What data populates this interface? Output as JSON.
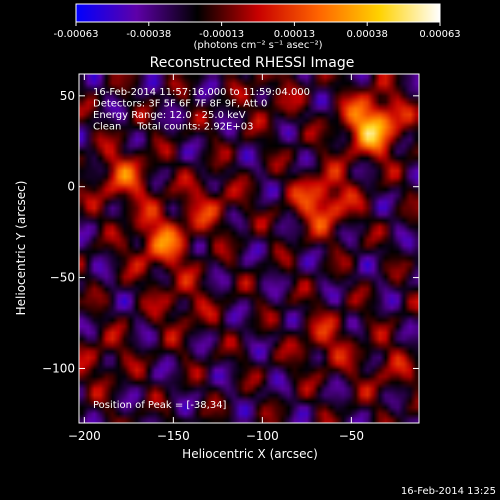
{
  "colorbar": {
    "ticks": [
      "-0.00063",
      "-0.00038",
      "-0.00013",
      "0.00013",
      "0.00038",
      "0.00063"
    ],
    "unit_label": "(photons cm⁻² s⁻¹ asec⁻²)",
    "colormap": [
      "#0000ff",
      "#5e00a8",
      "#000000",
      "#c80000",
      "#ff6400",
      "#ffd200",
      "#ffffff"
    ]
  },
  "chart_data": {
    "type": "heatmap",
    "title": "Reconstructed RHESSI Image",
    "xlabel": "Heliocentric X (arcsec)",
    "ylabel": "Heliocentric Y (arcsec)",
    "xlim": [
      -203,
      -12
    ],
    "ylim": [
      -130,
      62
    ],
    "xticks": [
      -200,
      -150,
      -100,
      -50
    ],
    "yticks": [
      -100,
      -50,
      0,
      50
    ],
    "info_lines": [
      "16-Feb-2014 11:57:16.000 to 11:59:04.000",
      "Detectors: 3F 5F 6F 7F 8F 9F, Att 0",
      "Energy Range: 12.0 - 25.0 keV",
      "Clean     Total counts: 2.92E+03"
    ],
    "peak_text": "Position of Peak = [-38,34]",
    "sources": [
      {
        "x": -38,
        "y": 34,
        "intensity": 0.00063
      },
      {
        "x": -66,
        "y": -8,
        "intensity": 0.00042
      },
      {
        "x": -157,
        "y": -30,
        "intensity": 0.0004
      },
      {
        "x": -178,
        "y": 5,
        "intensity": 0.00032
      },
      {
        "x": -130,
        "y": -10,
        "intensity": 0.00022
      },
      {
        "x": -145,
        "y": -65,
        "intensity": 0.00018
      },
      {
        "x": -190,
        "y": -95,
        "intensity": 0.00015
      },
      {
        "x": -65,
        "y": -85,
        "intensity": 0.00022
      },
      {
        "x": -30,
        "y": -100,
        "intensity": 0.00016
      },
      {
        "x": -95,
        "y": 50,
        "intensity": 0.00014
      }
    ]
  },
  "footer": {
    "timestamp": "16-Feb-2014 13:25"
  }
}
